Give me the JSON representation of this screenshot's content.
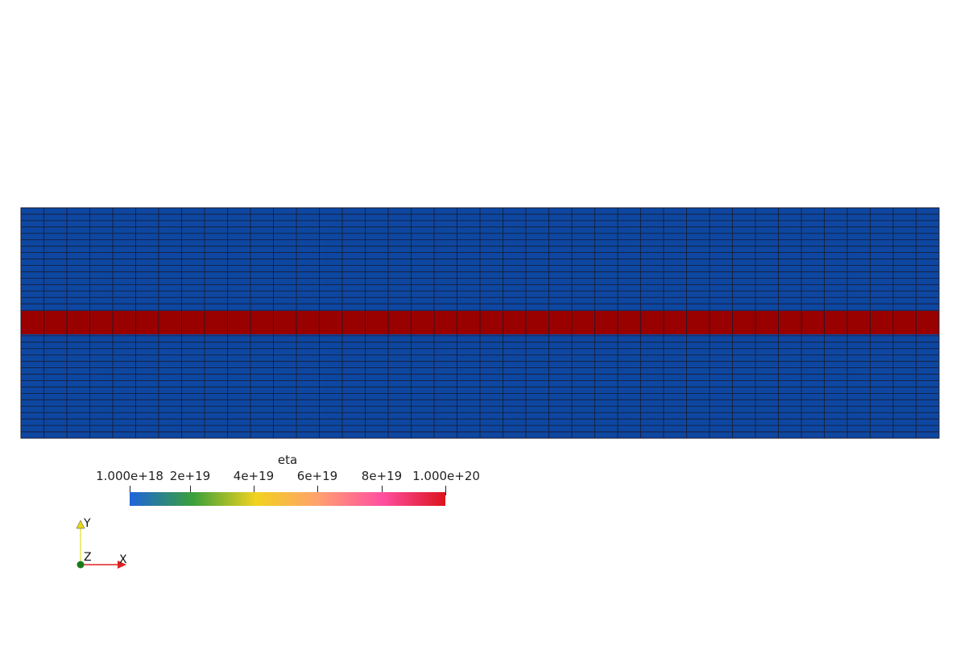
{
  "colors": {
    "background": "#ffffff",
    "low_viscosity": "#0d47a1",
    "high_viscosity": "#990000",
    "grid_line": "#1a1a2e"
  },
  "scalar_bar": {
    "title": "eta",
    "labels": [
      {
        "text": "1.000e+18",
        "value": 1e+18
      },
      {
        "text": "2e+19",
        "value": 2e+19
      },
      {
        "text": "4e+19",
        "value": 4e+19
      },
      {
        "text": "6e+19",
        "value": 6e+19
      },
      {
        "text": "8e+19",
        "value": 8e+19
      },
      {
        "text": "1.000e+20",
        "value": 1e+20
      }
    ],
    "range": [
      1e+18,
      1e+20
    ],
    "colormap": [
      "#1e64dc",
      "#3aa03a",
      "#f2d21e",
      "#ffa070",
      "#ff4fa0",
      "#dc141e"
    ]
  },
  "axes": {
    "x_label": "X",
    "y_label": "Y",
    "z_label": "Z"
  },
  "mesh": {
    "columns": 40,
    "rows_total": 36,
    "layers": [
      {
        "name": "upper",
        "value": 1e+18
      },
      {
        "name": "band",
        "value": 1e+20
      },
      {
        "name": "lower",
        "value": 1e+18
      }
    ]
  }
}
